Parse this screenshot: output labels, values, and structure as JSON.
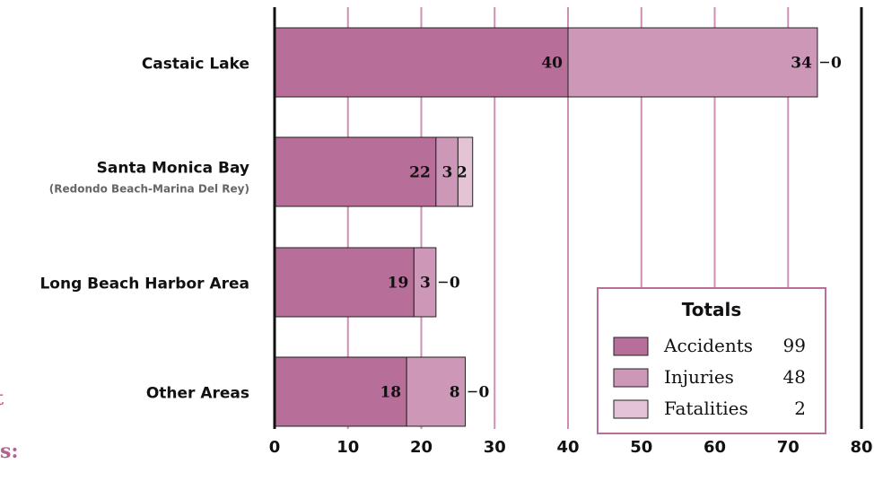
{
  "colors": {
    "accidents": "#b76e99",
    "injuries": "#cd97b8",
    "fatalities": "#e5c3d7",
    "gridline": "#cf8fb4",
    "legend_border": "#b76e99",
    "cut_text": "#b5618f"
  },
  "cut_off_text": [
    "t",
    "es:"
  ],
  "chart_data": {
    "type": "bar",
    "orientation": "horizontal",
    "stacked": true,
    "categories": [
      {
        "label": "Castaic Lake",
        "sublabel": ""
      },
      {
        "label": "Santa Monica Bay",
        "sublabel": "(Redondo Beach-Marina Del Rey)"
      },
      {
        "label": "Long Beach Harbor Area",
        "sublabel": ""
      },
      {
        "label": "Other Areas",
        "sublabel": ""
      }
    ],
    "series": [
      {
        "name": "Accidents",
        "values": [
          40,
          22,
          19,
          18
        ]
      },
      {
        "name": "Injuries",
        "values": [
          34,
          3,
          3,
          8
        ]
      },
      {
        "name": "Fatalities",
        "values": [
          0,
          2,
          0,
          0
        ]
      }
    ],
    "xlim": [
      0,
      80
    ],
    "xticks": [
      "0",
      "10",
      "20",
      "30",
      "40",
      "50",
      "60",
      "70",
      "80"
    ],
    "grid": true,
    "legend": {
      "title": "Totals",
      "placement": "bottom-right",
      "entries": [
        {
          "name": "Accidents",
          "total": "99"
        },
        {
          "name": "Injuries",
          "total": "48"
        },
        {
          "name": "Fatalities",
          "total": "2"
        }
      ]
    }
  }
}
